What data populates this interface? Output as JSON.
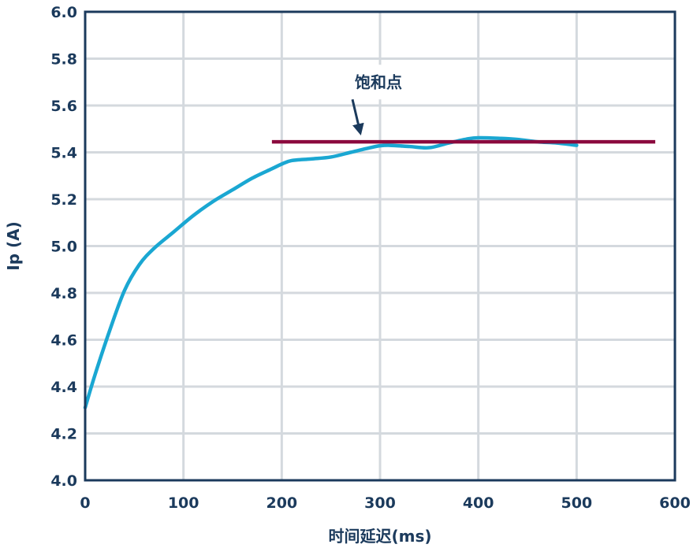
{
  "chart_data": {
    "type": "line",
    "title": "",
    "xlabel": "时间延迟(ms)",
    "ylabel": "Ip (A)",
    "xlim": [
      0,
      600
    ],
    "ylim": [
      4.0,
      6.0
    ],
    "x_ticks": [
      "0",
      "100",
      "200",
      "300",
      "400",
      "500",
      "600"
    ],
    "y_ticks": [
      "4.0",
      "4.2",
      "4.4",
      "4.6",
      "4.8",
      "5.0",
      "5.2",
      "5.4",
      "5.6",
      "5.8",
      "6.0"
    ],
    "grid": true,
    "legend": "none",
    "series": [
      {
        "color": "#1aa7d2",
        "x": [
          0,
          10,
          25,
          40,
          55,
          70,
          90,
          110,
          130,
          150,
          170,
          190,
          200,
          210,
          230,
          250,
          270,
          290,
          300,
          310,
          330,
          350,
          370,
          390,
          400,
          420,
          440,
          460,
          480,
          500
        ],
        "y": [
          4.31,
          4.45,
          4.64,
          4.81,
          4.92,
          4.99,
          5.06,
          5.13,
          5.19,
          5.24,
          5.29,
          5.33,
          5.35,
          5.365,
          5.372,
          5.38,
          5.4,
          5.42,
          5.428,
          5.43,
          5.425,
          5.42,
          5.44,
          5.458,
          5.462,
          5.46,
          5.455,
          5.445,
          5.44,
          5.43
        ]
      },
      {
        "name": "饱和点",
        "color": "#8b0a3e",
        "x": [
          190,
          580
        ],
        "y": [
          5.445,
          5.445
        ]
      }
    ],
    "annotations": [
      {
        "text": "饱和点",
        "x": 300,
        "y": 5.7,
        "arrow_to": [
          280,
          5.455
        ]
      }
    ]
  }
}
